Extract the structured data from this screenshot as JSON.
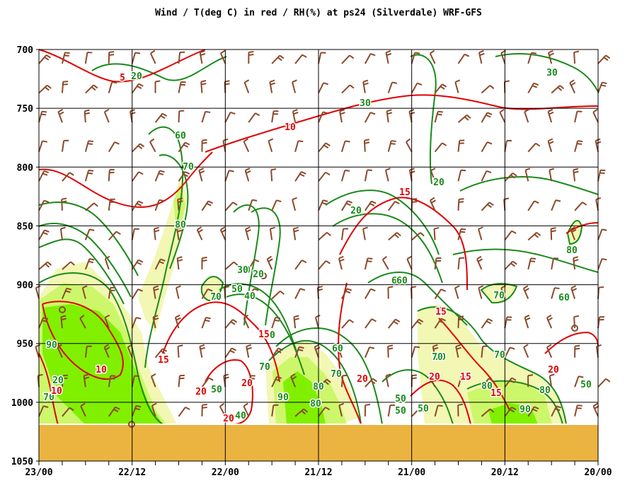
{
  "chart_data": {
    "type": "contour",
    "title": "Wind / T(deg C) in red / RH(%) at ps24 (Silverdale)  WRF-GFS",
    "y_axis": {
      "ticks": [
        700,
        750,
        800,
        850,
        900,
        950,
        1000,
        1050
      ],
      "range": [
        700,
        1050
      ],
      "unit": "hPa"
    },
    "x_axis": {
      "ticks": [
        "23/00",
        "22/12",
        "22/00",
        "21/12",
        "21/00",
        "20/12",
        "20/00"
      ]
    },
    "ground_level": 1012,
    "rh_fill_levels": [
      {
        "label": "70",
        "color": "#f2f7b3"
      },
      {
        "label": "80",
        "color": "#cdf76a"
      },
      {
        "label": "90",
        "color": "#80f000"
      }
    ],
    "colors": {
      "rh": "#1a8a1a",
      "temp": "#e00000",
      "wind": "#8b4a2b",
      "ground": "#ebb440",
      "grid": "#000000"
    },
    "rh_labels": [
      "20",
      "30",
      "30",
      "20",
      "20",
      "60",
      "70",
      "80",
      "30",
      "20",
      "50",
      "40",
      "70",
      "60",
      "60",
      "90",
      "80",
      "70",
      "70",
      "80",
      "90",
      "20",
      "40",
      "50",
      "60",
      "70",
      "80",
      "90",
      "70",
      "60",
      "50",
      "50",
      "50",
      "70",
      "80",
      "90",
      "70",
      "80",
      "60",
      "70",
      "30",
      "50"
    ],
    "temp_labels": [
      "5",
      "10",
      "15",
      "10",
      "15",
      "15",
      "20",
      "20",
      "20",
      "20",
      "20",
      "20",
      "15",
      "15",
      "15",
      "20",
      "10",
      "5"
    ]
  }
}
